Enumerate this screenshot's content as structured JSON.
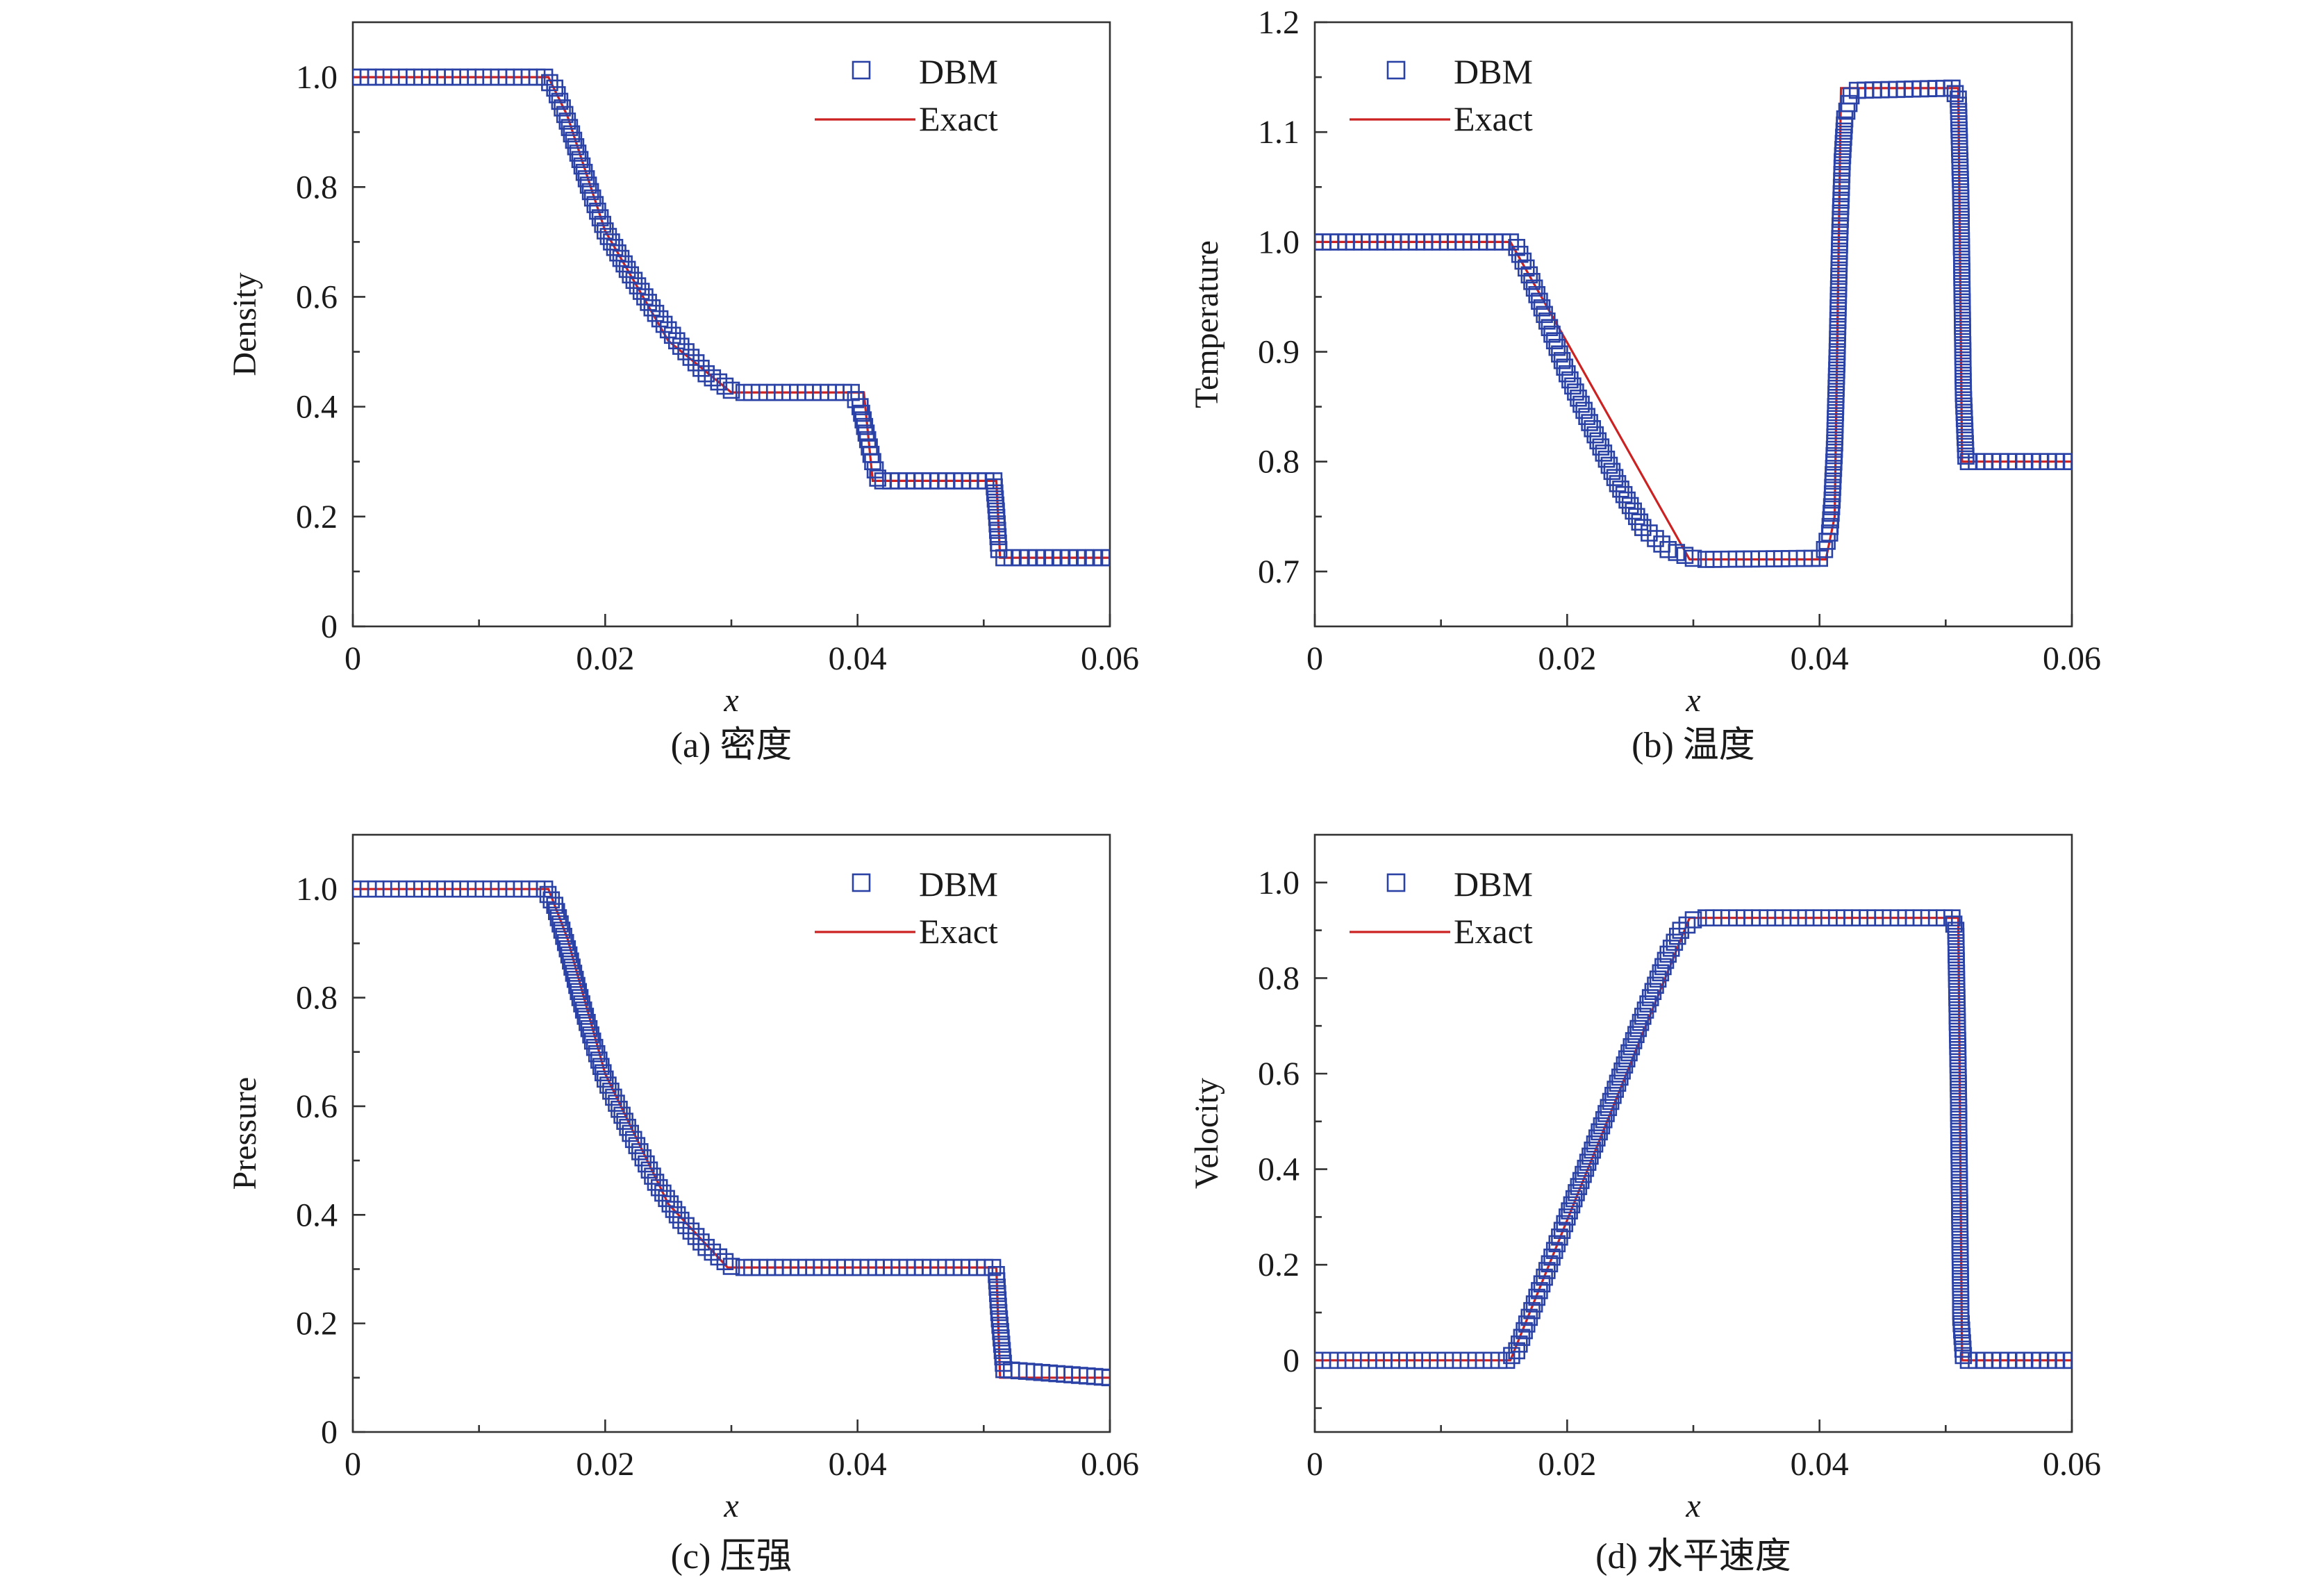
{
  "colors": {
    "dbm": "#2a41a6",
    "exact": "#cc2222",
    "axis": "#333333"
  },
  "legend": {
    "dbm_label": "DBM",
    "exact_label": "Exact"
  },
  "chart_data": [
    {
      "id": "a",
      "type": "line",
      "caption": "(a) 密度",
      "xlabel": "x",
      "ylabel": "Density",
      "xlim": [
        0,
        0.06
      ],
      "ylim": [
        0,
        1.1
      ],
      "xticks": [
        0,
        0.02,
        0.04,
        0.06
      ],
      "xtick_labels": [
        "0",
        "0.02",
        "0.04",
        "0.06"
      ],
      "yticks": [
        0,
        0.2,
        0.4,
        0.6,
        0.8,
        1.0
      ],
      "ytick_labels": [
        "0",
        "0.2",
        "0.4",
        "0.6",
        "0.8",
        "1.0"
      ],
      "legend_position": "top-right",
      "series": [
        {
          "name": "DBM",
          "style": "markers",
          "x": [
            0,
            0.0152,
            0.016,
            0.017,
            0.018,
            0.019,
            0.02,
            0.022,
            0.024,
            0.026,
            0.028,
            0.03,
            0.031,
            0.0395,
            0.0402,
            0.0408,
            0.0412,
            0.0416,
            0.042,
            0.0508,
            0.051,
            0.0512,
            0.0516,
            0.06
          ],
          "y": [
            1.0,
            1.0,
            0.98,
            0.92,
            0.85,
            0.78,
            0.72,
            0.64,
            0.57,
            0.51,
            0.46,
            0.43,
            0.426,
            0.426,
            0.4,
            0.34,
            0.3,
            0.27,
            0.265,
            0.265,
            0.21,
            0.14,
            0.125,
            0.125
          ]
        },
        {
          "name": "Exact",
          "style": "line",
          "x": [
            0,
            0.0155,
            0.017,
            0.02,
            0.025,
            0.03,
            0.0405,
            0.0412,
            0.051,
            0.0513,
            0.06
          ],
          "y": [
            1.0,
            1.0,
            0.93,
            0.72,
            0.52,
            0.426,
            0.426,
            0.265,
            0.265,
            0.125,
            0.125
          ]
        }
      ]
    },
    {
      "id": "b",
      "type": "line",
      "caption": "(b) 温度",
      "xlabel": "x",
      "ylabel": "Temperature",
      "xlim": [
        0,
        0.06
      ],
      "ylim": [
        0.65,
        1.2
      ],
      "xticks": [
        0,
        0.02,
        0.04,
        0.06
      ],
      "xtick_labels": [
        "0",
        "0.02",
        "0.04",
        "0.06"
      ],
      "yticks": [
        0.7,
        0.8,
        0.9,
        1.0,
        1.1,
        1.2
      ],
      "ytick_labels": [
        "0.7",
        "0.8",
        "0.9",
        "1.0",
        "1.1",
        "1.2"
      ],
      "legend_position": "top-left",
      "series": [
        {
          "name": "DBM",
          "style": "markers",
          "x": [
            0,
            0.0155,
            0.016,
            0.017,
            0.018,
            0.019,
            0.02,
            0.022,
            0.024,
            0.026,
            0.028,
            0.03,
            0.031,
            0.04,
            0.0404,
            0.0408,
            0.041,
            0.0412,
            0.0414,
            0.0416,
            0.0418,
            0.042,
            0.0425,
            0.043,
            0.0505,
            0.051,
            0.0512,
            0.0514,
            0.0516,
            0.0518,
            0.06
          ],
          "y": [
            1.0,
            1.0,
            0.995,
            0.97,
            0.94,
            0.91,
            0.88,
            0.83,
            0.78,
            0.74,
            0.72,
            0.712,
            0.711,
            0.712,
            0.72,
            0.735,
            0.765,
            0.817,
            0.9,
            1.003,
            1.073,
            1.112,
            1.133,
            1.138,
            1.14,
            1.13,
            1.04,
            0.862,
            0.805,
            0.8,
            0.8
          ]
        },
        {
          "name": "Exact",
          "style": "line",
          "x": [
            0,
            0.0155,
            0.0297,
            0.0405,
            0.0412,
            0.0417,
            0.051,
            0.0513,
            0.06
          ],
          "y": [
            1.0,
            1.0,
            0.711,
            0.711,
            0.75,
            1.14,
            1.14,
            0.8,
            0.8
          ]
        }
      ]
    },
    {
      "id": "c",
      "type": "line",
      "caption": "(c) 压强",
      "xlabel": "x",
      "ylabel": "Pressure",
      "xlim": [
        0,
        0.06
      ],
      "ylim": [
        0,
        1.1
      ],
      "xticks": [
        0,
        0.02,
        0.04,
        0.06
      ],
      "xtick_labels": [
        "0",
        "0.02",
        "0.04",
        "0.06"
      ],
      "yticks": [
        0,
        0.2,
        0.4,
        0.6,
        0.8,
        1.0
      ],
      "ytick_labels": [
        "0",
        "0.2",
        "0.4",
        "0.6",
        "0.8",
        "1.0"
      ],
      "legend_position": "top-right",
      "series": [
        {
          "name": "DBM",
          "style": "markers",
          "x": [
            0,
            0.0152,
            0.016,
            0.017,
            0.018,
            0.019,
            0.02,
            0.022,
            0.024,
            0.026,
            0.028,
            0.03,
            0.031,
            0.0507,
            0.051,
            0.0512,
            0.0516,
            0.06
          ],
          "y": [
            1.0,
            1.0,
            0.97,
            0.89,
            0.8,
            0.72,
            0.65,
            0.55,
            0.46,
            0.39,
            0.34,
            0.305,
            0.303,
            0.303,
            0.29,
            0.22,
            0.115,
            0.1
          ]
        },
        {
          "name": "Exact",
          "style": "line",
          "x": [
            0,
            0.0155,
            0.017,
            0.02,
            0.025,
            0.0297,
            0.051,
            0.0513,
            0.06
          ],
          "y": [
            1.0,
            1.0,
            0.91,
            0.66,
            0.42,
            0.303,
            0.303,
            0.1,
            0.1
          ]
        }
      ]
    },
    {
      "id": "d",
      "type": "line",
      "caption": "(d) 水平速度",
      "xlabel": "x",
      "ylabel": "Velocity",
      "xlim": [
        0,
        0.06
      ],
      "ylim": [
        -0.15,
        1.1
      ],
      "xticks": [
        0,
        0.02,
        0.04,
        0.06
      ],
      "xtick_labels": [
        "0",
        "0.02",
        "0.04",
        "0.06"
      ],
      "yticks": [
        0,
        0.2,
        0.4,
        0.6,
        0.8,
        1.0
      ],
      "ytick_labels": [
        "0",
        "0.2",
        "0.4",
        "0.6",
        "0.8",
        "1.0"
      ],
      "legend_position": "top-left",
      "series": [
        {
          "name": "DBM",
          "style": "markers",
          "x": [
            0,
            0.0152,
            0.016,
            0.017,
            0.018,
            0.019,
            0.02,
            0.022,
            0.024,
            0.026,
            0.028,
            0.029,
            0.03,
            0.031,
            0.0505,
            0.0508,
            0.051,
            0.0512,
            0.0514,
            0.0518,
            0.06
          ],
          "y": [
            0,
            0,
            0.02,
            0.09,
            0.16,
            0.23,
            0.3,
            0.44,
            0.58,
            0.72,
            0.85,
            0.9,
            0.922,
            0.926,
            0.926,
            0.9,
            0.58,
            0.09,
            0.01,
            0,
            0
          ]
        },
        {
          "name": "Exact",
          "style": "line",
          "x": [
            0,
            0.0155,
            0.0297,
            0.051,
            0.0513,
            0.06
          ],
          "y": [
            0,
            0,
            0.926,
            0.926,
            0,
            0
          ]
        }
      ]
    }
  ]
}
